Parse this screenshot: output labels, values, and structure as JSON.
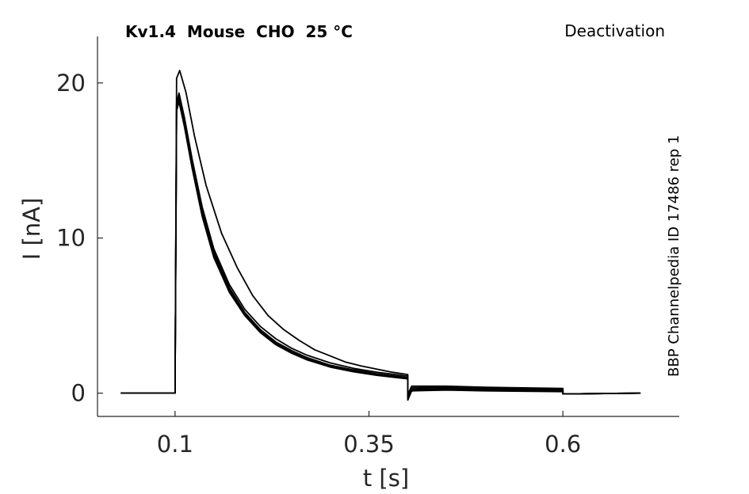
{
  "chart_data": {
    "type": "line",
    "title": "Kv1.4  Mouse  CHO  25 °C",
    "protocol_label": "Deactivation",
    "side_label": "BBP Channelpedia ID 17486 rep 1",
    "xlabel": "t [s]",
    "ylabel": "I [nA]",
    "xlim": [
      0.0,
      0.75
    ],
    "ylim": [
      -1.5,
      23.0
    ],
    "xticks": [
      0.1,
      0.35,
      0.6
    ],
    "xtick_labels": [
      "0.1",
      "0.35",
      "0.6"
    ],
    "yticks": [
      0,
      10,
      20
    ],
    "ytick_labels": [
      "0",
      "10",
      "20"
    ],
    "grid": false,
    "legend": "none",
    "line_color": "#000000",
    "series": [
      {
        "peak_nA": 20.8,
        "points": [
          [
            0.03,
            0
          ],
          [
            0.1,
            0
          ],
          [
            0.1,
            0.5
          ],
          [
            0.102,
            20.3
          ],
          [
            0.106,
            20.8
          ],
          [
            0.114,
            19.4
          ],
          [
            0.125,
            16.6
          ],
          [
            0.14,
            13.4
          ],
          [
            0.16,
            10.3
          ],
          [
            0.18,
            8.1
          ],
          [
            0.2,
            6.3
          ],
          [
            0.22,
            5.0
          ],
          [
            0.24,
            4.1
          ],
          [
            0.26,
            3.4
          ],
          [
            0.28,
            2.8
          ],
          [
            0.3,
            2.4
          ],
          [
            0.32,
            2.0
          ],
          [
            0.34,
            1.75
          ],
          [
            0.36,
            1.55
          ],
          [
            0.38,
            1.35
          ],
          [
            0.4,
            1.2
          ],
          [
            0.4,
            0.1
          ],
          [
            0.42,
            0.25
          ],
          [
            0.5,
            0.2
          ],
          [
            0.6,
            0.15
          ],
          [
            0.6,
            -0.05
          ],
          [
            0.7,
            0
          ]
        ]
      },
      {
        "peak_nA": 19.35,
        "points": [
          [
            0.03,
            0
          ],
          [
            0.1,
            0
          ],
          [
            0.1,
            0.5
          ],
          [
            0.102,
            18.7
          ],
          [
            0.105,
            19.35
          ],
          [
            0.112,
            17.8
          ],
          [
            0.122,
            15.1
          ],
          [
            0.135,
            12.0
          ],
          [
            0.15,
            9.3
          ],
          [
            0.17,
            7.0
          ],
          [
            0.19,
            5.4
          ],
          [
            0.21,
            4.3
          ],
          [
            0.23,
            3.5
          ],
          [
            0.25,
            2.9
          ],
          [
            0.27,
            2.45
          ],
          [
            0.3,
            1.95
          ],
          [
            0.33,
            1.6
          ],
          [
            0.36,
            1.35
          ],
          [
            0.4,
            1.1
          ],
          [
            0.4,
            -0.45
          ],
          [
            0.405,
            0.15
          ],
          [
            0.45,
            0.2
          ],
          [
            0.5,
            0.15
          ],
          [
            0.6,
            0.1
          ],
          [
            0.6,
            -0.05
          ],
          [
            0.7,
            0
          ]
        ]
      },
      {
        "peak_nA": 19.2,
        "points": [
          [
            0.03,
            0
          ],
          [
            0.1,
            0
          ],
          [
            0.1,
            0.5
          ],
          [
            0.102,
            18.6
          ],
          [
            0.105,
            19.2
          ],
          [
            0.112,
            17.6
          ],
          [
            0.122,
            14.9
          ],
          [
            0.135,
            11.8
          ],
          [
            0.15,
            9.1
          ],
          [
            0.17,
            6.8
          ],
          [
            0.19,
            5.2
          ],
          [
            0.21,
            4.1
          ],
          [
            0.23,
            3.3
          ],
          [
            0.25,
            2.75
          ],
          [
            0.27,
            2.3
          ],
          [
            0.3,
            1.8
          ],
          [
            0.33,
            1.5
          ],
          [
            0.36,
            1.25
          ],
          [
            0.4,
            1.0
          ],
          [
            0.4,
            -0.35
          ],
          [
            0.405,
            0.25
          ],
          [
            0.45,
            0.3
          ],
          [
            0.5,
            0.25
          ],
          [
            0.6,
            0.2
          ],
          [
            0.6,
            -0.05
          ],
          [
            0.7,
            0
          ]
        ]
      },
      {
        "peak_nA": 19.0,
        "points": [
          [
            0.03,
            0
          ],
          [
            0.1,
            0
          ],
          [
            0.1,
            0.5
          ],
          [
            0.102,
            18.4
          ],
          [
            0.105,
            19.0
          ],
          [
            0.112,
            17.4
          ],
          [
            0.122,
            14.7
          ],
          [
            0.135,
            11.6
          ],
          [
            0.15,
            8.9
          ],
          [
            0.17,
            6.65
          ],
          [
            0.19,
            5.1
          ],
          [
            0.21,
            4.0
          ],
          [
            0.23,
            3.2
          ],
          [
            0.25,
            2.65
          ],
          [
            0.27,
            2.2
          ],
          [
            0.3,
            1.72
          ],
          [
            0.33,
            1.42
          ],
          [
            0.36,
            1.18
          ],
          [
            0.4,
            0.95
          ],
          [
            0.4,
            -0.2
          ],
          [
            0.405,
            0.35
          ],
          [
            0.45,
            0.38
          ],
          [
            0.5,
            0.32
          ],
          [
            0.6,
            0.25
          ],
          [
            0.6,
            -0.05
          ],
          [
            0.7,
            0
          ]
        ]
      },
      {
        "peak_nA": 18.8,
        "points": [
          [
            0.03,
            0
          ],
          [
            0.1,
            0
          ],
          [
            0.1,
            0.5
          ],
          [
            0.102,
            18.2
          ],
          [
            0.105,
            18.8
          ],
          [
            0.112,
            17.2
          ],
          [
            0.122,
            14.5
          ],
          [
            0.135,
            11.4
          ],
          [
            0.15,
            8.75
          ],
          [
            0.17,
            6.5
          ],
          [
            0.19,
            5.0
          ],
          [
            0.21,
            3.9
          ],
          [
            0.23,
            3.12
          ],
          [
            0.25,
            2.58
          ],
          [
            0.27,
            2.15
          ],
          [
            0.3,
            1.68
          ],
          [
            0.33,
            1.38
          ],
          [
            0.36,
            1.15
          ],
          [
            0.4,
            0.92
          ],
          [
            0.4,
            -0.1
          ],
          [
            0.405,
            0.45
          ],
          [
            0.45,
            0.45
          ],
          [
            0.5,
            0.38
          ],
          [
            0.6,
            0.3
          ],
          [
            0.6,
            -0.05
          ],
          [
            0.7,
            0
          ]
        ]
      }
    ]
  }
}
